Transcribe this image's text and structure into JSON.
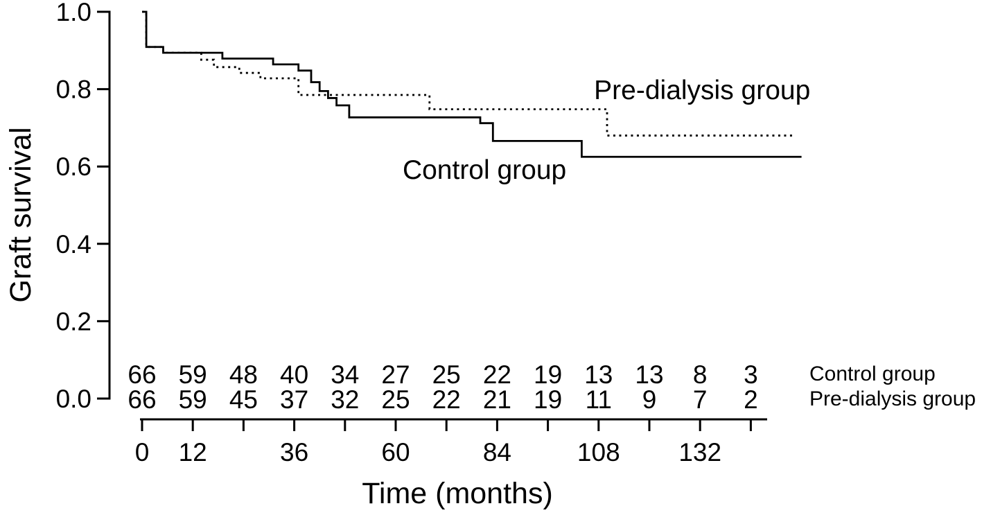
{
  "chart_data": {
    "type": "line",
    "subtype": "kaplan-meier-step-curve",
    "title": "",
    "xlabel": "Time (months)",
    "ylabel": "Graft survival",
    "xlim": [
      0,
      148
    ],
    "ylim": [
      0.0,
      1.0
    ],
    "grid": false,
    "legend_position": "inline-annotations",
    "y_ticks": [
      0.0,
      0.2,
      0.4,
      0.6,
      0.8,
      1.0
    ],
    "x_ticks": [
      0,
      12,
      24,
      36,
      48,
      60,
      72,
      84,
      96,
      108,
      120,
      132,
      144
    ],
    "x_tick_labels": [
      0,
      12,
      36,
      60,
      84,
      108,
      132
    ],
    "series": [
      {
        "name": "Control group",
        "line_style": "solid",
        "color": "#000000",
        "steps": [
          [
            0,
            1.0
          ],
          [
            1,
            0.909
          ],
          [
            5,
            0.894
          ],
          [
            19,
            0.879
          ],
          [
            31,
            0.864
          ],
          [
            37,
            0.848
          ],
          [
            40,
            0.818
          ],
          [
            42,
            0.795
          ],
          [
            44,
            0.777
          ],
          [
            46,
            0.758
          ],
          [
            49,
            0.727
          ],
          [
            80,
            0.712
          ],
          [
            83,
            0.666
          ],
          [
            104,
            0.625
          ]
        ],
        "end_time": 156
      },
      {
        "name": "Pre-dialysis group",
        "line_style": "dotted",
        "color": "#000000",
        "steps": [
          [
            0,
            1.0
          ],
          [
            1,
            0.909
          ],
          [
            5,
            0.894
          ],
          [
            14,
            0.876
          ],
          [
            17,
            0.857
          ],
          [
            23,
            0.842
          ],
          [
            28,
            0.828
          ],
          [
            37,
            0.785
          ],
          [
            68,
            0.748
          ],
          [
            110,
            0.68
          ]
        ],
        "end_time": 154
      }
    ],
    "annotations": [
      {
        "text": "Pre-dialysis group",
        "x": 132.5,
        "y": 0.774
      },
      {
        "text": "Control group",
        "x": 81,
        "y": 0.568
      }
    ],
    "risk_table": {
      "times": [
        0,
        12,
        24,
        36,
        48,
        60,
        72,
        84,
        96,
        108,
        120,
        132,
        144
      ],
      "rows": [
        {
          "label": "Control group",
          "counts": [
            66,
            59,
            48,
            40,
            34,
            27,
            25,
            22,
            19,
            13,
            13,
            8,
            3
          ]
        },
        {
          "label": "Pre-dialysis group",
          "counts": [
            66,
            59,
            45,
            37,
            32,
            25,
            22,
            21,
            19,
            11,
            9,
            7,
            2
          ]
        }
      ]
    }
  }
}
